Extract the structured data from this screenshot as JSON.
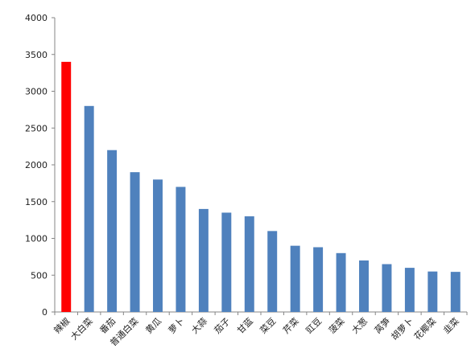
{
  "chart_data": {
    "type": "bar",
    "title": "",
    "xlabel": "",
    "ylabel": "",
    "ylim": [
      0,
      4000
    ],
    "yticks": [
      0,
      500,
      1000,
      1500,
      2000,
      2500,
      3000,
      3500,
      4000
    ],
    "grid": false,
    "legend": "none",
    "categories": [
      "辣椒",
      "大白菜",
      "番茄",
      "普通白菜",
      "黄瓜",
      "萝卜",
      "大蒜",
      "茄子",
      "甘蓝",
      "菜豆",
      "芹菜",
      "豇豆",
      "菠菜",
      "大葱",
      "莴笋",
      "胡萝卜",
      "花椰菜",
      "韭菜"
    ],
    "values": [
      3400,
      2800,
      2200,
      1900,
      1800,
      1700,
      1400,
      1350,
      1300,
      1100,
      900,
      880,
      800,
      700,
      650,
      600,
      550,
      545
    ],
    "colors": {
      "highlight": "#ff0000",
      "default": "#4f81bd",
      "axis": "#868686"
    },
    "highlight_index": 0
  }
}
